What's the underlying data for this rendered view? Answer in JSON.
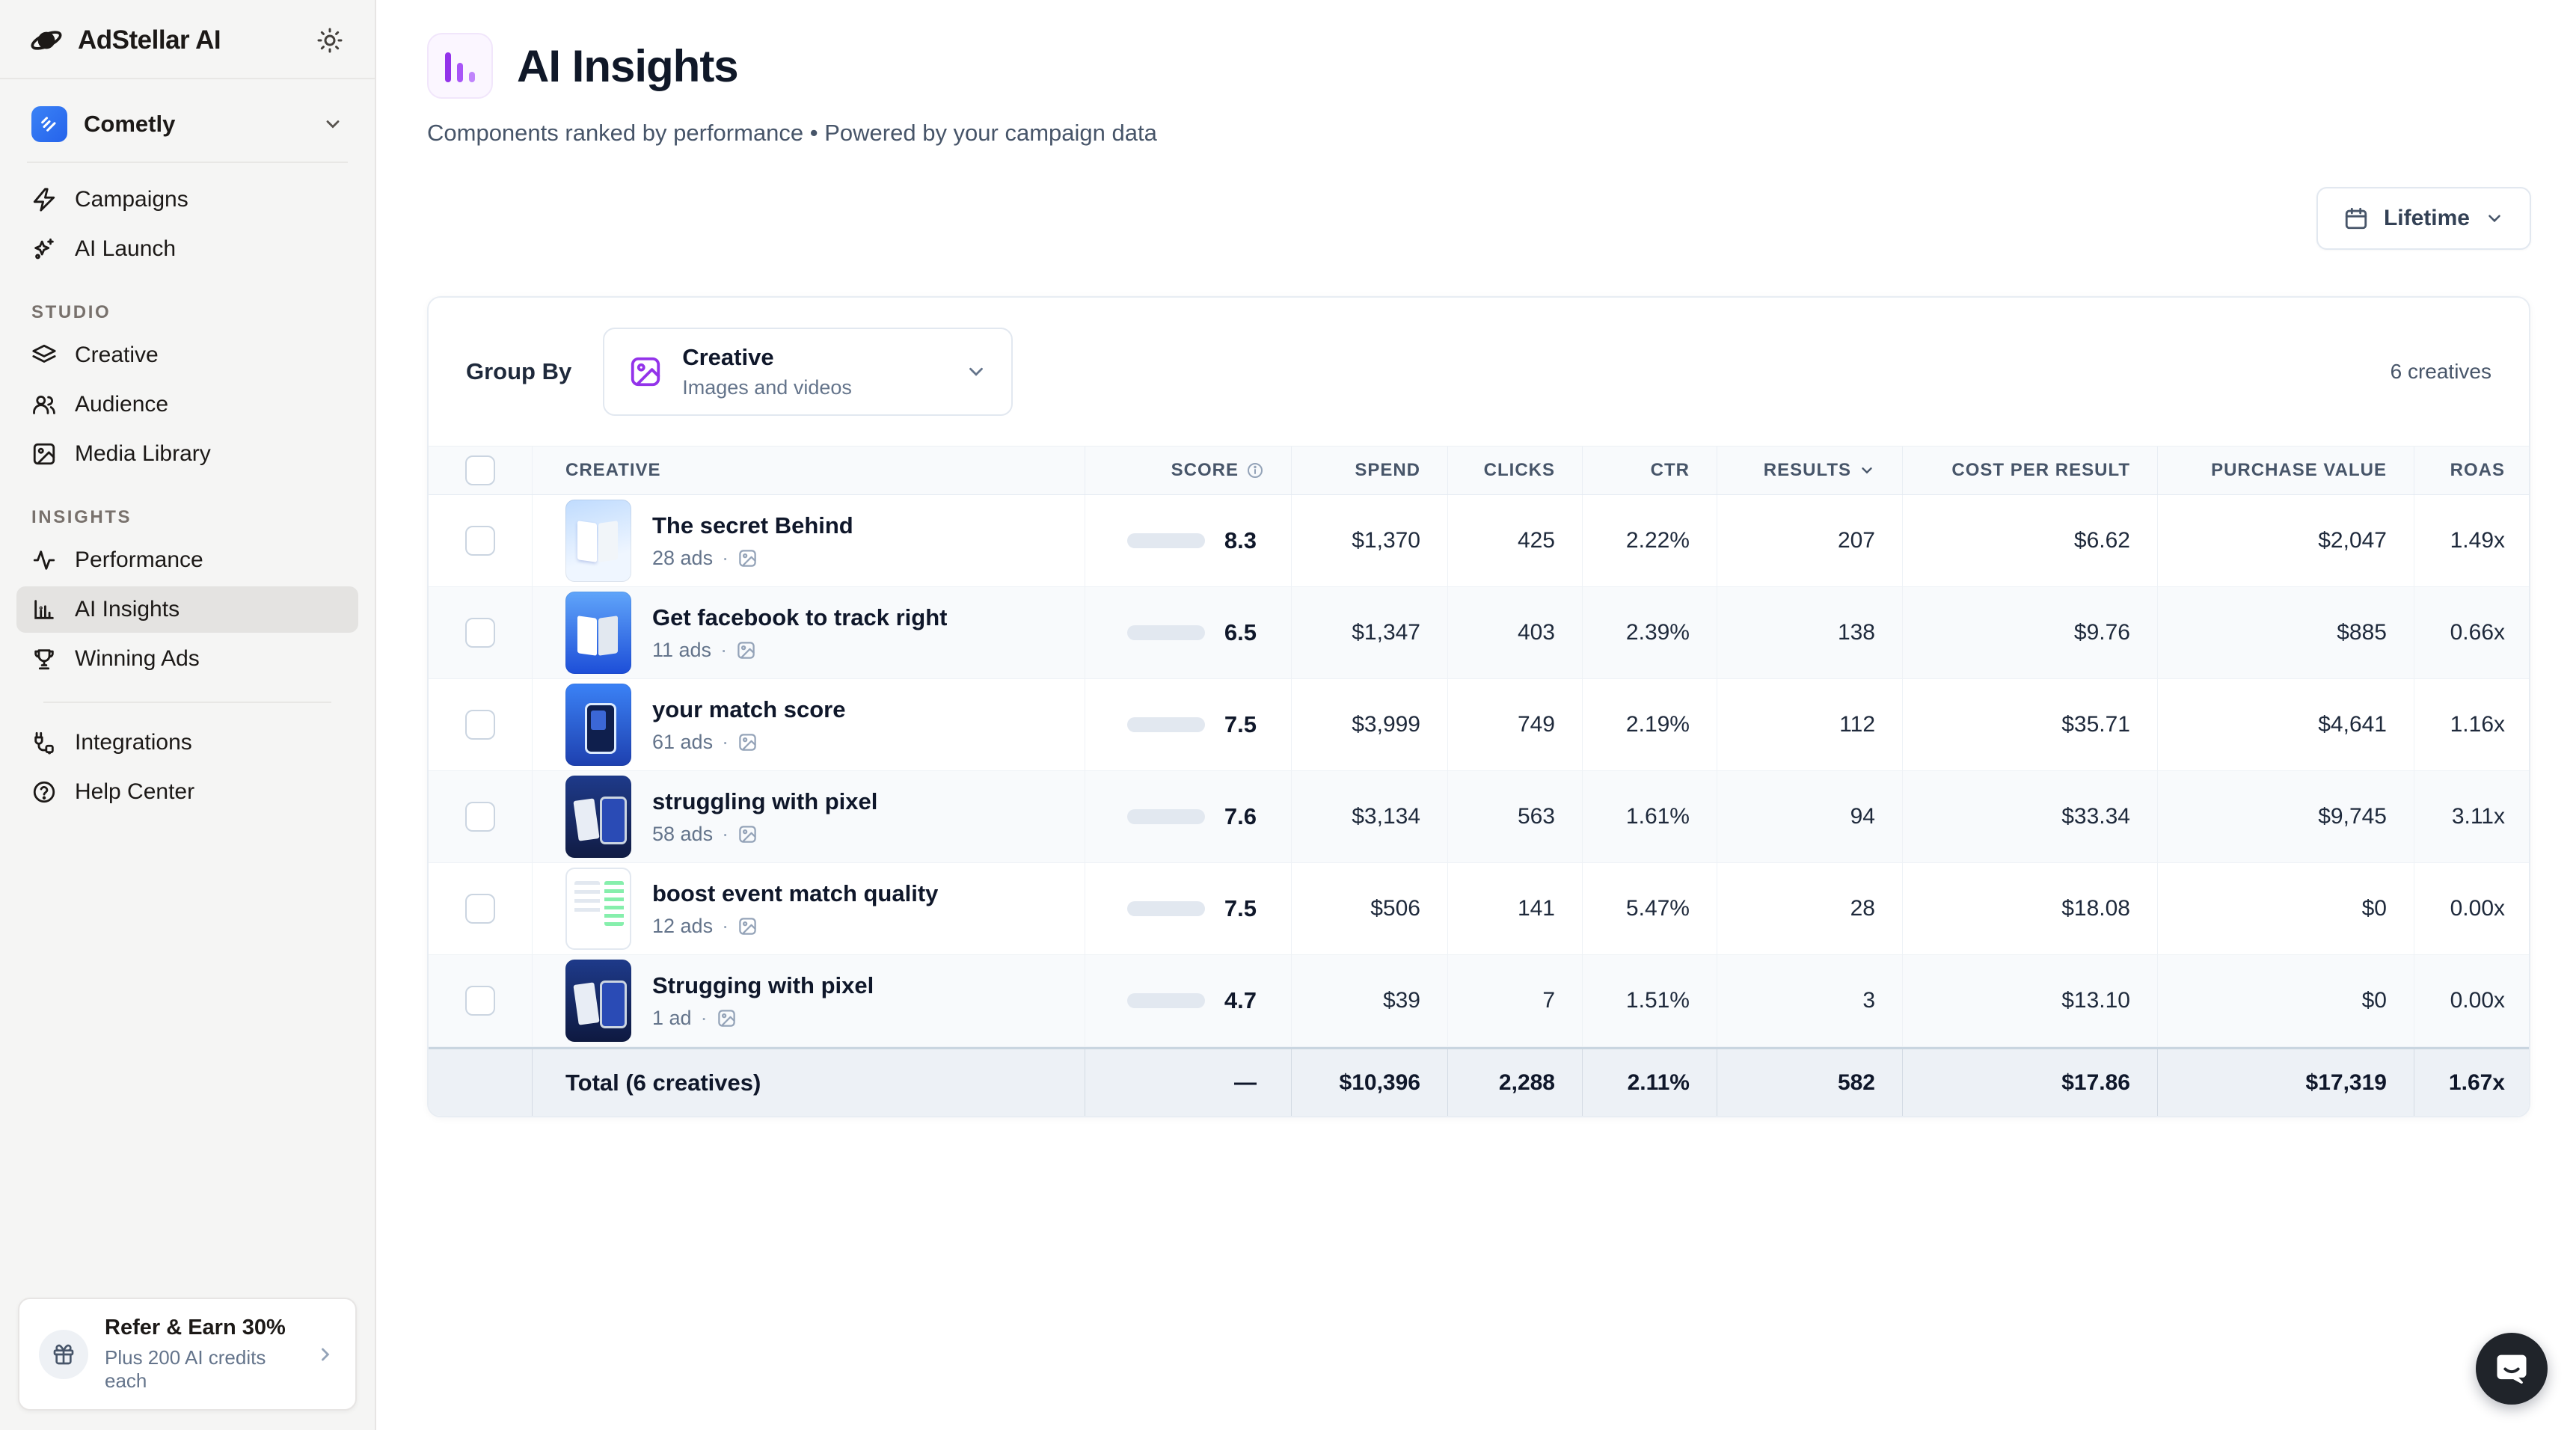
{
  "sidebar": {
    "logo_text": "AdStellar AI",
    "workspace": {
      "name": "Cometly"
    },
    "nav_top": [
      {
        "label": "Campaigns",
        "icon": "lightning-icon"
      },
      {
        "label": "AI Launch",
        "icon": "sparkles-icon"
      }
    ],
    "sections": [
      {
        "title": "STUDIO",
        "items": [
          {
            "label": "Creative",
            "icon": "layers-icon"
          },
          {
            "label": "Audience",
            "icon": "users-icon"
          },
          {
            "label": "Media Library",
            "icon": "image-icon"
          }
        ]
      },
      {
        "title": "INSIGHTS",
        "items": [
          {
            "label": "Performance",
            "icon": "activity-icon"
          },
          {
            "label": "AI Insights",
            "icon": "bar-chart-icon",
            "active": true
          },
          {
            "label": "Winning Ads",
            "icon": "trophy-icon"
          }
        ]
      }
    ],
    "nav_bottom": [
      {
        "label": "Integrations",
        "icon": "plug-icon"
      },
      {
        "label": "Help Center",
        "icon": "help-circle-icon"
      }
    ],
    "referral": {
      "title": "Refer & Earn 30%",
      "subtitle": "Plus 200 AI credits each"
    }
  },
  "header": {
    "title": "AI Insights",
    "subtitle": "Components ranked by performance • Powered by your campaign data"
  },
  "toolbar": {
    "date_range": "Lifetime"
  },
  "table": {
    "group_by_label": "Group By",
    "group_by_selected": "Creative",
    "group_by_description": "Images and videos",
    "count_label": "6 creatives",
    "columns": [
      "CREATIVE",
      "SCORE",
      "SPEND",
      "CLICKS",
      "CTR",
      "RESULTS",
      "COST PER RESULT",
      "PURCHASE VALUE",
      "ROAS"
    ],
    "score_colors": {
      "green": "#22c55e",
      "yellow": "#eab308",
      "orange": "#f97316"
    },
    "rows": [
      {
        "name": "The secret Behind",
        "ads": "28 ads",
        "score": 8.3,
        "score_color": "green",
        "spend": "$1,370",
        "clicks": "425",
        "ctr": "2.22%",
        "results": "207",
        "cost_per_result": "$6.62",
        "purchase_value": "$2,047",
        "roas": "1.49x",
        "thumb": "lightblue-book"
      },
      {
        "name": "Get facebook to track right",
        "ads": "11 ads",
        "score": 6.5,
        "score_color": "yellow",
        "spend": "$1,347",
        "clicks": "403",
        "ctr": "2.39%",
        "results": "138",
        "cost_per_result": "$9.76",
        "purchase_value": "$885",
        "roas": "0.66x",
        "thumb": "blue-book"
      },
      {
        "name": "your match score",
        "ads": "61 ads",
        "score": 7.5,
        "score_color": "green",
        "spend": "$3,999",
        "clicks": "749",
        "ctr": "2.19%",
        "results": "112",
        "cost_per_result": "$35.71",
        "purchase_value": "$4,641",
        "roas": "1.16x",
        "thumb": "blue-phone"
      },
      {
        "name": "struggling with pixel",
        "ads": "58 ads",
        "score": 7.6,
        "score_color": "green",
        "spend": "$3,134",
        "clicks": "563",
        "ctr": "1.61%",
        "results": "94",
        "cost_per_result": "$33.34",
        "purchase_value": "$9,745",
        "roas": "3.11x",
        "thumb": "navy-phone"
      },
      {
        "name": "boost event match quality",
        "ads": "12 ads",
        "score": 7.5,
        "score_color": "green",
        "spend": "$506",
        "clicks": "141",
        "ctr": "5.47%",
        "results": "28",
        "cost_per_result": "$18.08",
        "purchase_value": "$0",
        "roas": "0.00x",
        "thumb": "white-flowchart"
      },
      {
        "name": "Strugging with pixel",
        "ads": "1 ad",
        "score": 4.7,
        "score_color": "orange",
        "spend": "$39",
        "clicks": "7",
        "ctr": "1.51%",
        "results": "3",
        "cost_per_result": "$13.10",
        "purchase_value": "$0",
        "roas": "0.00x",
        "thumb": "navy-phone-2"
      }
    ],
    "total": {
      "label": "Total (6 creatives)",
      "score": "—",
      "spend": "$10,396",
      "clicks": "2,288",
      "ctr": "2.11%",
      "results": "582",
      "cost_per_result": "$17.86",
      "purchase_value": "$17,319",
      "roas": "1.67x"
    }
  }
}
